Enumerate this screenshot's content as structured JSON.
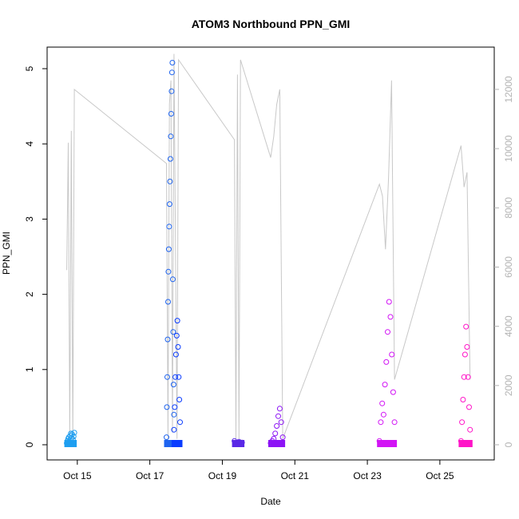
{
  "chart_data": {
    "type": "scatter",
    "title": "ATOM3 Northbound PPN_GMI",
    "xlabel": "Date",
    "ylabel": "PPN_GMI",
    "x_ticks": [
      "Oct 15",
      "Oct 17",
      "Oct 19",
      "Oct 21",
      "Oct 23",
      "Oct 25"
    ],
    "xlim": [
      "2019-10-14 04:00",
      "2019-10-26 12:00"
    ],
    "ylim": [
      0,
      5
    ],
    "y_ticks": [
      0,
      1,
      2,
      3,
      4,
      5
    ],
    "y2_ticks": [
      0,
      2000,
      4000,
      6000,
      8000,
      10000,
      12000
    ],
    "y2_lim": [
      0,
      12700
    ],
    "legend": "none",
    "grid": false,
    "colors": {
      "background_line": "#c8c8c8",
      "box": "#000000",
      "right_axis": "#b3b3b3"
    },
    "series": [
      {
        "color": "#1e9ef0",
        "x_range": [
          "2019-10-14 17:00",
          "2019-10-14 22:00"
        ],
        "values": [
          0.02,
          0.05,
          0.08,
          0.1,
          0.06,
          0.12,
          0.15,
          0.09,
          0.14,
          0.07,
          0.11,
          0.16
        ]
      },
      {
        "color": "#1e64f0",
        "x_range": [
          "2019-10-17 11:00",
          "2019-10-17 16:00"
        ],
        "values": [
          0.1,
          0.5,
          0.9,
          1.4,
          1.9,
          2.3,
          2.6,
          2.9,
          3.2,
          3.5,
          3.8,
          4.1,
          4.4,
          4.7,
          4.95,
          5.08,
          2.2,
          1.5,
          0.8,
          0.4
        ]
      },
      {
        "color": "#0a3cff",
        "x_range": [
          "2019-10-17 16:00",
          "2019-10-17 20:00"
        ],
        "values": [
          0.2,
          0.5,
          0.9,
          1.2,
          1.45,
          1.65,
          1.3,
          0.9,
          0.6,
          0.3
        ]
      },
      {
        "color": "#5a28e6",
        "x_range": [
          "2019-10-19 08:00",
          "2019-10-19 13:00"
        ],
        "values": [
          0.05,
          0.03,
          0.02,
          0.04,
          0.01,
          0.03
        ]
      },
      {
        "color": "#8c14f5",
        "x_range": [
          "2019-10-20 08:00",
          "2019-10-20 16:00"
        ],
        "values": [
          0.02,
          0.05,
          0.08,
          0.15,
          0.25,
          0.38,
          0.48,
          0.3,
          0.1
        ]
      },
      {
        "color": "#d214f5",
        "x_range": [
          "2019-10-23 08:00",
          "2019-10-23 18:00"
        ],
        "values": [
          0.05,
          0.3,
          0.55,
          0.4,
          0.8,
          1.1,
          1.5,
          1.9,
          1.7,
          1.2,
          0.7,
          0.3
        ]
      },
      {
        "color": "#ff14c8",
        "x_range": [
          "2019-10-25 14:00",
          "2019-10-25 20:00"
        ],
        "values": [
          0.05,
          0.3,
          0.6,
          0.9,
          1.2,
          1.57,
          1.3,
          0.9,
          0.5,
          0.2
        ]
      }
    ],
    "secondary_series": {
      "color": "#c8c8c8",
      "x": [
        "2019-10-14 17:00",
        "2019-10-14 18:00",
        "2019-10-14 19:00",
        "2019-10-14 20:00",
        "2019-10-14 21:00",
        "2019-10-14 22:00",
        "2019-10-17 11:00",
        "2019-10-17 12:00",
        "2019-10-17 13:00",
        "2019-10-17 14:00",
        "2019-10-17 15:00",
        "2019-10-17 16:00",
        "2019-10-17 18:00",
        "2019-10-17 19:00",
        "2019-10-19 08:00",
        "2019-10-19 09:00",
        "2019-10-19 10:00",
        "2019-10-19 11:00",
        "2019-10-19 12:00",
        "2019-10-20 08:00",
        "2019-10-20 10:00",
        "2019-10-20 12:00",
        "2019-10-20 14:00",
        "2019-10-20 16:00",
        "2019-10-23 08:00",
        "2019-10-23 10:00",
        "2019-10-23 12:00",
        "2019-10-23 14:00",
        "2019-10-23 16:00",
        "2019-10-23 18:00",
        "2019-10-25 14:00",
        "2019-10-25 16:00",
        "2019-10-25 18:00",
        "2019-10-25 20:00"
      ],
      "values": [
        5900,
        10200,
        300,
        10600,
        200,
        12000,
        9500,
        200,
        11500,
        12300,
        400,
        13200,
        200,
        13000,
        10300,
        200,
        12500,
        200,
        13000,
        9700,
        10400,
        11500,
        12000,
        200,
        8800,
        8400,
        6600,
        9000,
        12300,
        2200,
        10100,
        8700,
        9200,
        2200
      ]
    }
  }
}
